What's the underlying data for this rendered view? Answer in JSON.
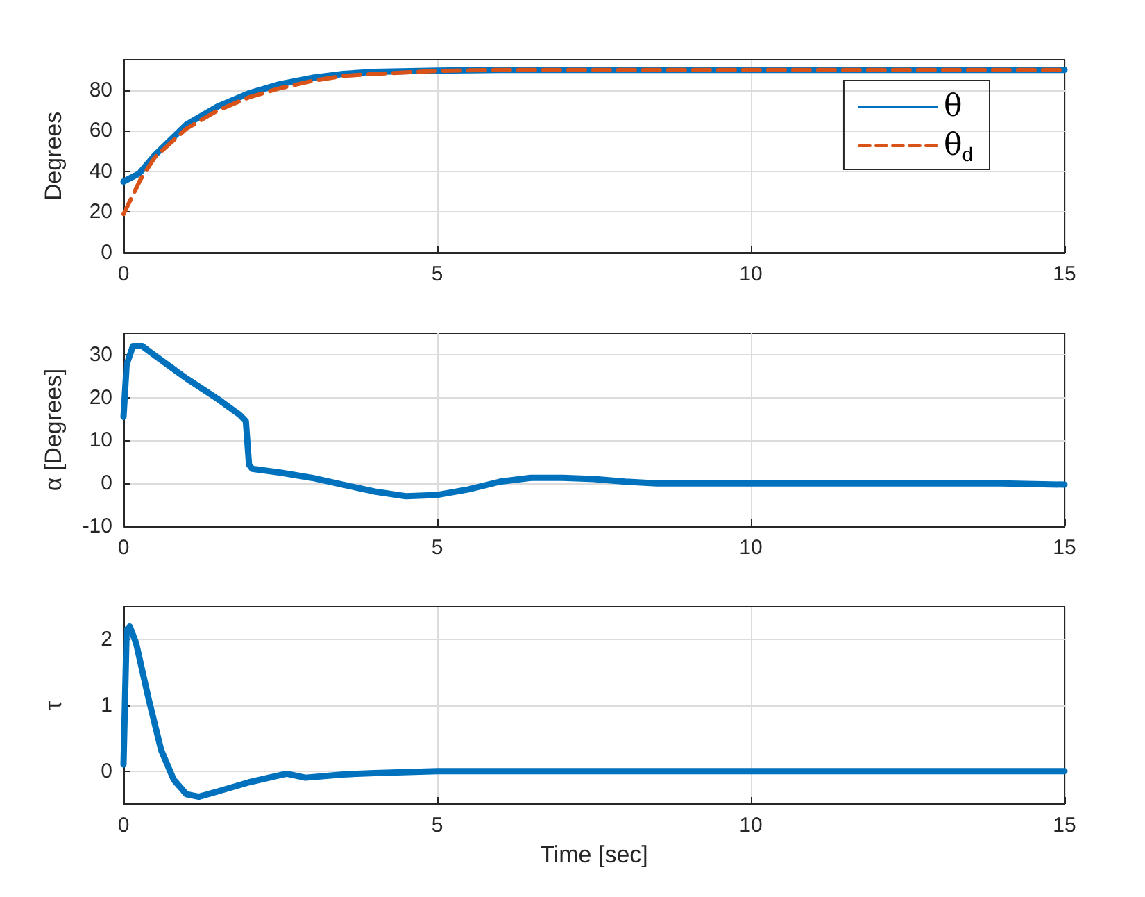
{
  "chart_data": [
    {
      "type": "line",
      "ylabel": "Degrees",
      "xlim": [
        0,
        15
      ],
      "xticks": [
        0,
        5,
        10,
        15
      ],
      "ylim": [
        0,
        95
      ],
      "yticks": [
        0,
        20,
        40,
        60,
        80
      ],
      "grid": true,
      "legend": "top right",
      "marker": "none",
      "series": [
        {
          "name": "θ",
          "color": "#0072bd",
          "line_style": "solid",
          "x": [
            0,
            0.25,
            0.5,
            0.75,
            1,
            1.5,
            2,
            2.5,
            3,
            3.5,
            4,
            5,
            6,
            8,
            10,
            12,
            15
          ],
          "values": [
            35,
            39,
            48,
            55.5,
            63,
            72,
            78.5,
            83,
            86,
            88,
            89,
            89.6,
            90,
            90,
            90,
            90,
            90
          ]
        },
        {
          "name": "θ$_{d}$",
          "color": "#d95319",
          "line_style": "dashed",
          "x": [
            0,
            0.27,
            0.5,
            1,
            1.5,
            2,
            2.5,
            3,
            3.5,
            4,
            5,
            6,
            8,
            10,
            12,
            15
          ],
          "values": [
            19,
            36,
            47,
            61,
            70,
            76.5,
            81,
            84.5,
            87,
            88,
            89.5,
            90,
            90,
            90,
            90,
            90
          ]
        }
      ]
    },
    {
      "type": "line",
      "ylabel": "α [Degrees]",
      "xlim": [
        0,
        15
      ],
      "xticks": [
        0,
        5,
        10,
        15
      ],
      "ylim": [
        -10,
        35
      ],
      "yticks": [
        -10,
        0,
        10,
        20,
        30
      ],
      "grid": true,
      "marker": "none",
      "series": [
        {
          "color": "#0072bd",
          "line_style": "solid",
          "x": [
            0,
            0.05,
            0.15,
            0.3,
            0.5,
            1,
            1.5,
            1.85,
            1.95,
            2,
            2.05,
            2.5,
            3,
            3.5,
            4,
            4.5,
            5,
            5.5,
            6,
            6.5,
            7,
            7.5,
            8,
            8.5,
            10,
            12,
            14,
            15
          ],
          "values": [
            15.5,
            27.7,
            32,
            32,
            29.8,
            24.5,
            19.7,
            16,
            14.5,
            4.4,
            3.4,
            2.5,
            1.3,
            -0.3,
            -1.9,
            -3,
            -2.7,
            -1.4,
            0.4,
            1.3,
            1.3,
            1,
            0.4,
            0,
            0,
            0,
            0,
            -0.3
          ]
        }
      ]
    },
    {
      "type": "line",
      "ylabel": "τ",
      "xlabel": "Time [sec]",
      "xlim": [
        0,
        15
      ],
      "xticks": [
        0,
        5,
        10,
        15
      ],
      "ylim": [
        -0.5,
        2.5
      ],
      "yticks": [
        0,
        1,
        2
      ],
      "grid": true,
      "marker": "none",
      "series": [
        {
          "color": "#0072bd",
          "line_style": "solid",
          "x": [
            0,
            0.05,
            0.1,
            0.2,
            0.4,
            0.6,
            0.8,
            1,
            1.2,
            1.5,
            2,
            2.5,
            2.6,
            2.9,
            3.5,
            4,
            5,
            7,
            10,
            15
          ],
          "values": [
            0.1,
            2.15,
            2.2,
            1.95,
            1.1,
            0.32,
            -0.13,
            -0.35,
            -0.39,
            -0.31,
            -0.17,
            -0.06,
            -0.04,
            -0.1,
            -0.05,
            -0.03,
            0,
            0,
            0,
            0
          ]
        }
      ]
    }
  ]
}
